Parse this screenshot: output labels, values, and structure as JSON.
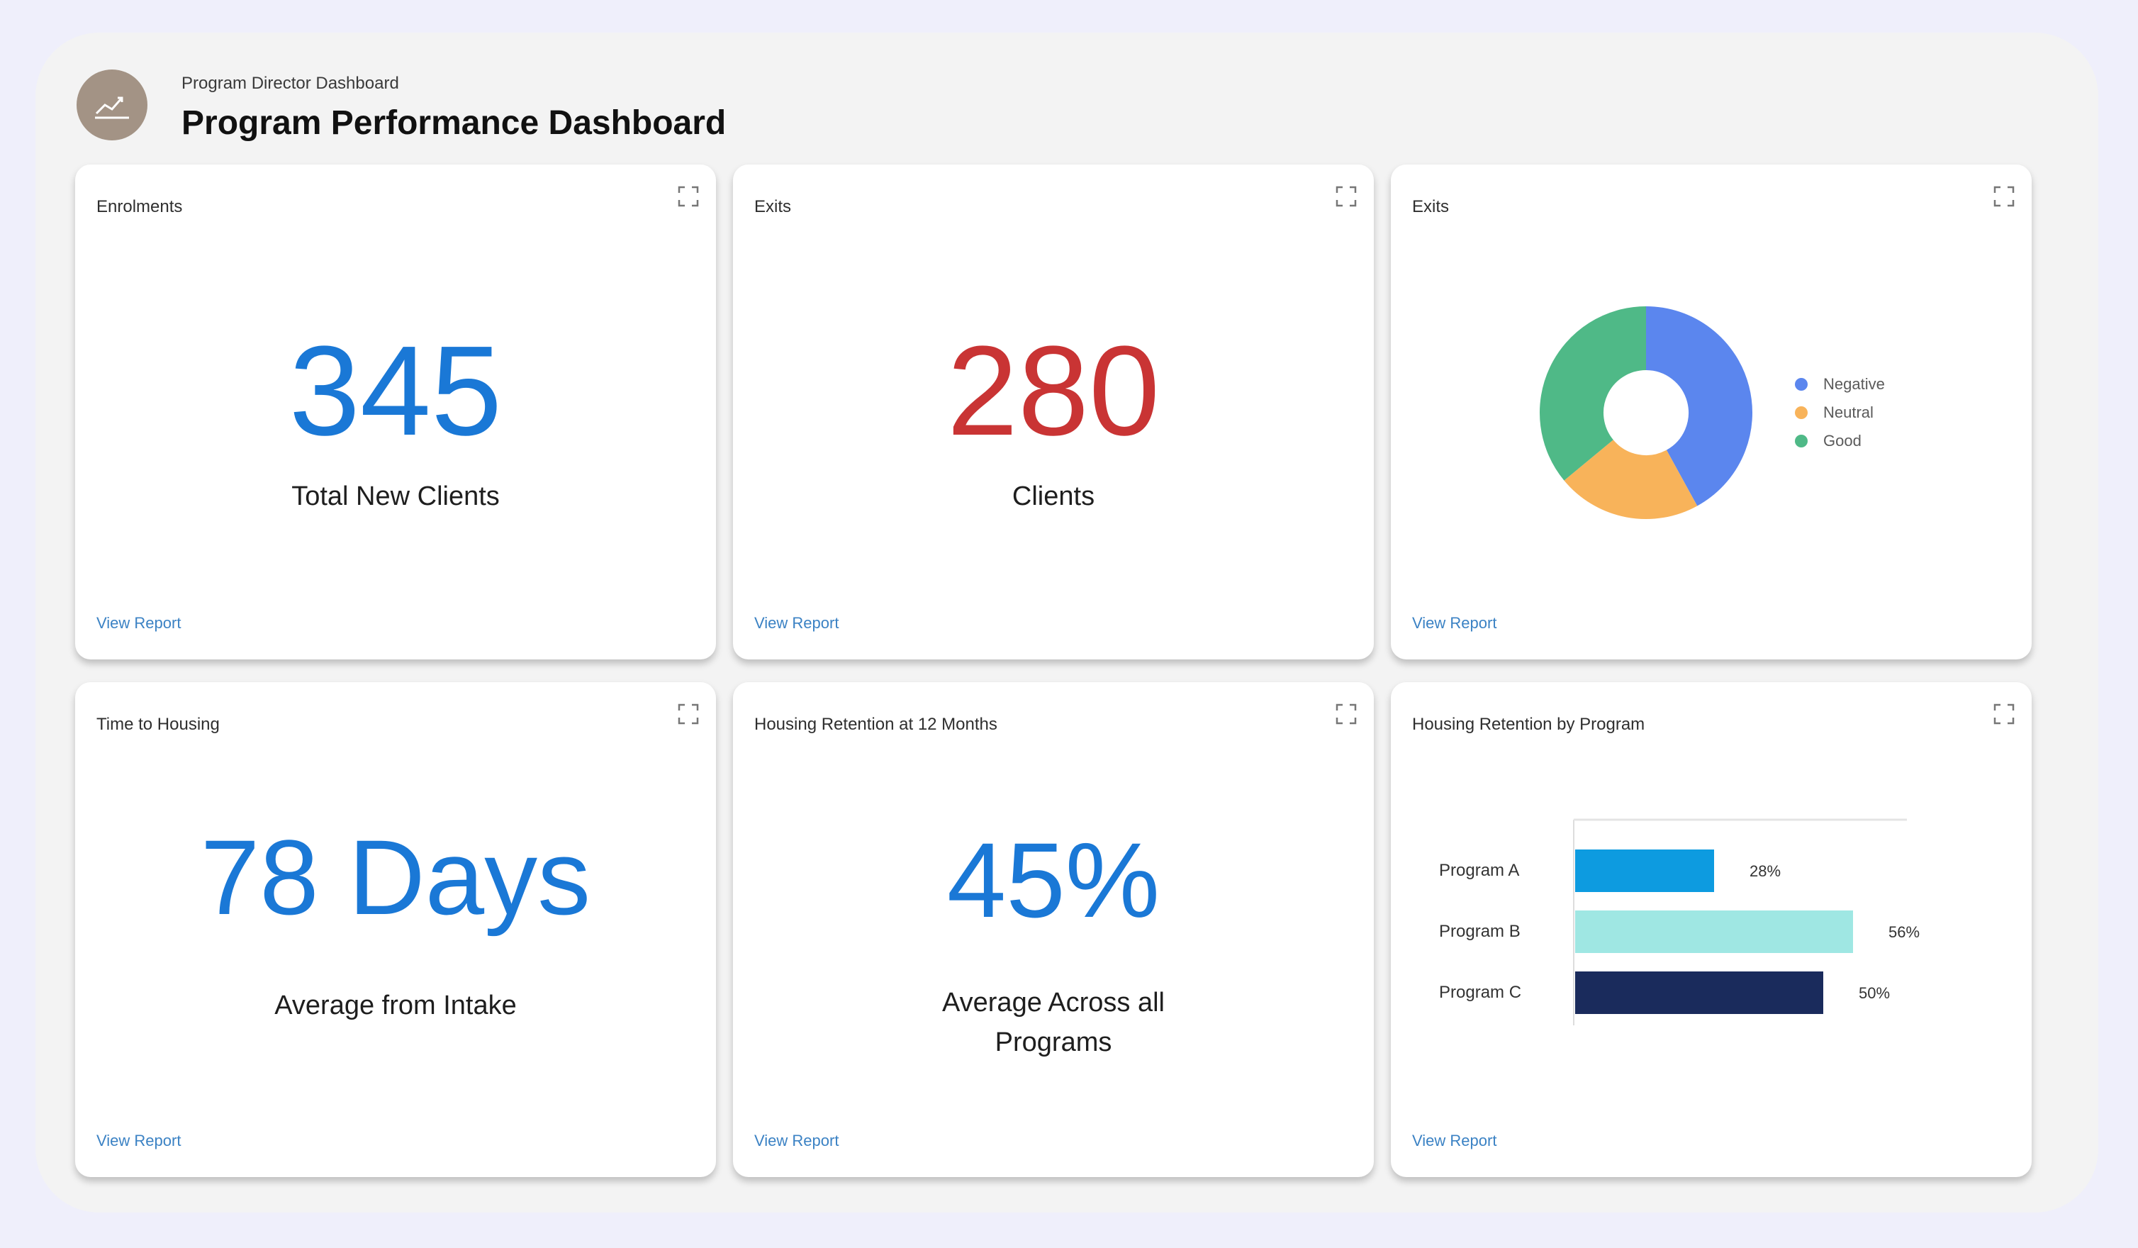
{
  "header": {
    "subtitle": "Program Director Dashboard",
    "title": "Program Performance Dashboard",
    "icon": "trend-chart-icon"
  },
  "cards": {
    "enrollments": {
      "title": "Enrolments",
      "value": "345",
      "caption": "Total New Clients",
      "link": "View Report",
      "color": "#1a78d6"
    },
    "exits": {
      "title": "Exits",
      "value": "280",
      "caption": "Clients",
      "link": "View Report",
      "color": "#c93434"
    },
    "exits_chart": {
      "title": "Exits",
      "link": "View Report"
    },
    "time_to_housing": {
      "title": "Time to Housing",
      "value": "78 Days",
      "caption": "Average from Intake",
      "link": "View Report",
      "color": "#1a78d6"
    },
    "retention_12": {
      "title": "Housing Retention at 12 Months",
      "value": "45%",
      "caption_line1": "Average Across all",
      "caption_line2": "Programs",
      "link": "View Report",
      "color": "#1a78d6"
    },
    "retention_by_program": {
      "title": "Housing Retention by Program",
      "link": "View Report"
    }
  },
  "chart_data": [
    {
      "type": "pie",
      "categories": [
        "Negative",
        "Neutral",
        "Good"
      ],
      "values": [
        42,
        22,
        36
      ],
      "colors": [
        "#5b86ee",
        "#f8b35a",
        "#4fb987"
      ],
      "legend": "right"
    },
    {
      "type": "bar",
      "orientation": "horizontal",
      "categories": [
        "Program A",
        "Program B",
        "Program C"
      ],
      "values": [
        28,
        56,
        50
      ],
      "value_labels": [
        "28%",
        "56%",
        "50%"
      ],
      "colors": [
        "#0d9be0",
        "#9fe7e3",
        "#1a2b5c"
      ],
      "xlim": [
        0,
        60
      ]
    }
  ]
}
